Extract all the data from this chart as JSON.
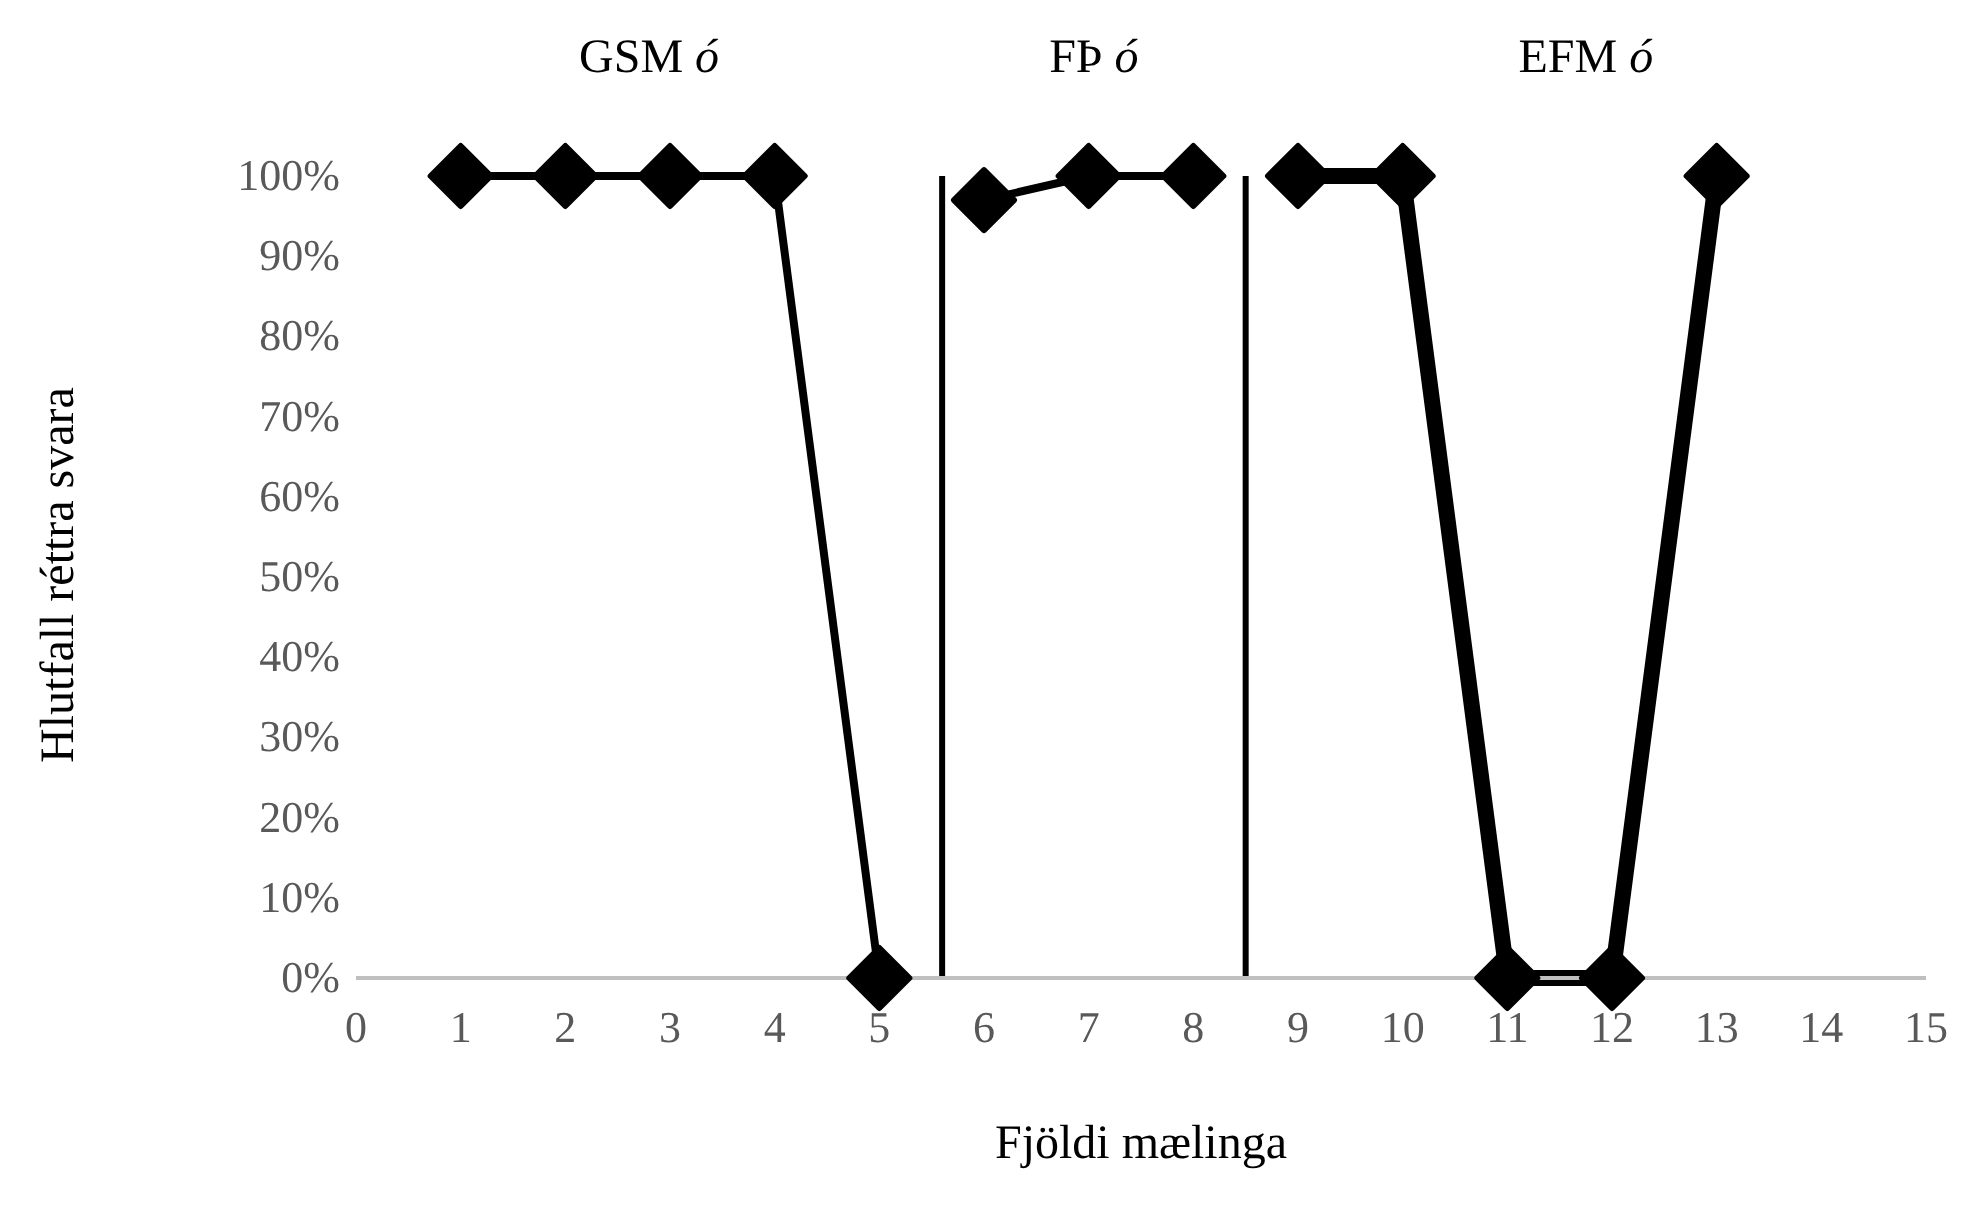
{
  "chart_data": {
    "type": "line",
    "xlabel": "Fjöldi mælinga",
    "ylabel": "Hlutfall réttra svara",
    "annotations": [
      "GSM ó",
      "FÞ ó",
      "EFM ó"
    ],
    "series": [
      {
        "color": "#000000",
        "x": [
          1,
          2,
          3,
          4,
          5
        ],
        "values": [
          100,
          100,
          100,
          100,
          0
        ]
      },
      {
        "color": "#000000",
        "x": [
          6,
          7,
          8
        ],
        "values": [
          97,
          100,
          100
        ]
      },
      {
        "color": "#000000",
        "x": [
          9,
          10,
          11,
          12,
          13
        ],
        "values": [
          100,
          100,
          0,
          0,
          100
        ]
      }
    ],
    "xlim": [
      0,
      15
    ],
    "xticks": [
      0,
      1,
      2,
      3,
      4,
      5,
      6,
      7,
      8,
      9,
      10,
      11,
      12,
      13,
      14,
      15
    ],
    "ylim": [
      0,
      100
    ],
    "yticks": [
      {
        "value": 0,
        "label": "0%"
      },
      {
        "value": 10,
        "label": "10%"
      },
      {
        "value": 20,
        "label": "20%"
      },
      {
        "value": 30,
        "label": "30%"
      },
      {
        "value": 40,
        "label": "40%"
      },
      {
        "value": 50,
        "label": "50%"
      },
      {
        "value": 60,
        "label": "60%"
      },
      {
        "value": 70,
        "label": "70%"
      },
      {
        "value": 80,
        "label": "80%"
      },
      {
        "value": 90,
        "label": "90%"
      },
      {
        "value": 100,
        "label": "100%"
      }
    ],
    "ref_lines": [
      {
        "axis": "x",
        "value": 5.6,
        "color": "#000000"
      },
      {
        "axis": "x",
        "value": 8.5,
        "color": "#000000"
      }
    ],
    "grid": false,
    "marker": "diamond",
    "line_style": "solid"
  }
}
